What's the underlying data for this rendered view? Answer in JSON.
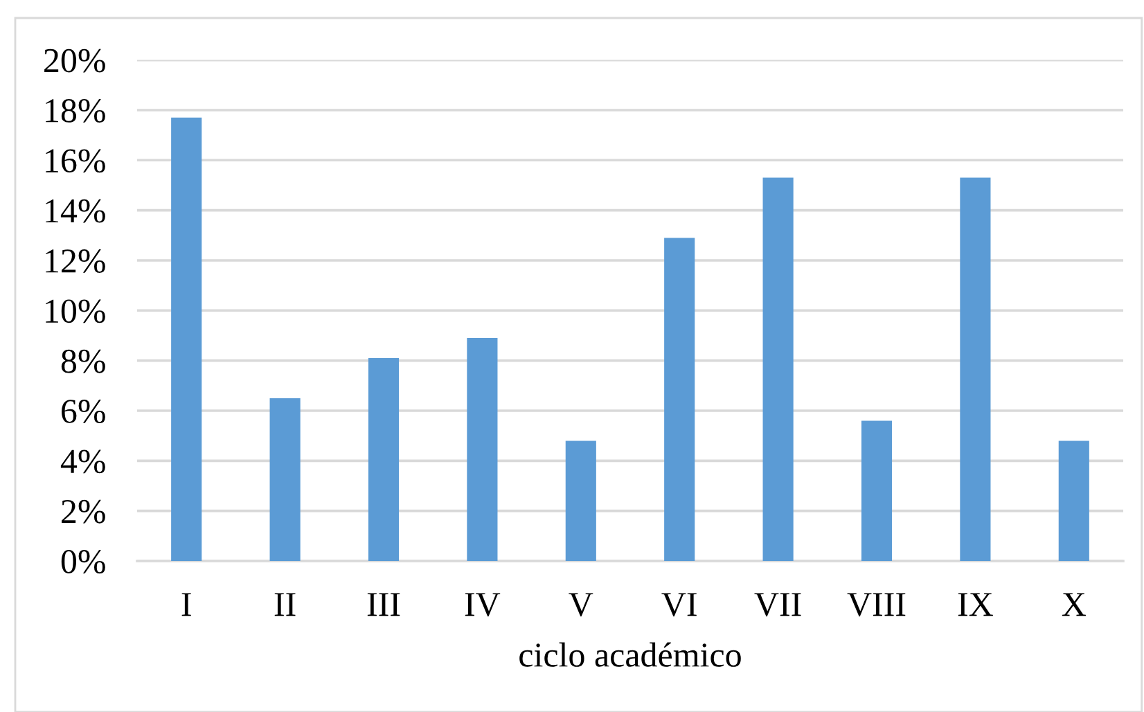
{
  "chart_data": {
    "type": "bar",
    "categories": [
      "I",
      "II",
      "III",
      "IV",
      "V",
      "VI",
      "VII",
      "VIII",
      "IX",
      "X"
    ],
    "values": [
      17.7,
      6.5,
      8.1,
      8.9,
      4.8,
      12.9,
      15.3,
      5.6,
      15.3,
      4.8
    ],
    "color": "#5b9bd5",
    "xlabel": "ciclo académico",
    "ylim": [
      0,
      20
    ],
    "yticks": [
      {
        "value": 0,
        "label": "0%"
      },
      {
        "value": 2,
        "label": "2%"
      },
      {
        "value": 4,
        "label": "4%"
      },
      {
        "value": 6,
        "label": "6%"
      },
      {
        "value": 8,
        "label": "8%"
      },
      {
        "value": 10,
        "label": "10%"
      },
      {
        "value": 12,
        "label": "12%"
      },
      {
        "value": 14,
        "label": "14%"
      },
      {
        "value": 16,
        "label": "16%"
      },
      {
        "value": 18,
        "label": "18%"
      },
      {
        "value": 20,
        "label": "20%"
      }
    ],
    "grid": "y"
  }
}
